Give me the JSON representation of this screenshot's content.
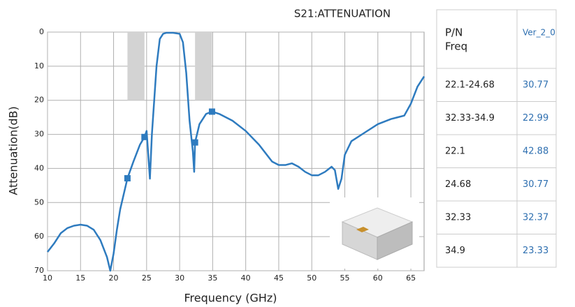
{
  "chart_data": {
    "type": "line",
    "title": "S21:ATTENUATION",
    "x_label": "Frequency (GHz)",
    "y_label": "Attenuation(dB)",
    "xlim": [
      10,
      67
    ],
    "ylim": [
      0,
      70
    ],
    "y_inverted": true,
    "xticks": [
      10,
      15,
      20,
      25,
      30,
      35,
      40,
      45,
      50,
      55,
      60,
      65
    ],
    "yticks": [
      0,
      10,
      20,
      30,
      40,
      50,
      60,
      70
    ],
    "grid": true,
    "series": [
      {
        "color": "#2e7bbf",
        "x": [
          10,
          11,
          12,
          13,
          14,
          15,
          16,
          17,
          18,
          19,
          19.5,
          20,
          20.5,
          21,
          22.1,
          23,
          24,
          24.68,
          25,
          25.5,
          25.8,
          26.5,
          27,
          27.5,
          28,
          29,
          30,
          30.5,
          31,
          31.5,
          32,
          32.2,
          32.33,
          33,
          34,
          34.9,
          36,
          38,
          40,
          42,
          44,
          45,
          46,
          47,
          48,
          49,
          50,
          51,
          52,
          53,
          53.5,
          54,
          54.5,
          55,
          56,
          58,
          60,
          62,
          63,
          64,
          65,
          66,
          67
        ],
        "values": [
          64.5,
          62,
          59,
          57.5,
          56.8,
          56.5,
          56.8,
          58,
          61,
          66,
          70,
          65,
          58,
          52,
          42.88,
          38,
          33,
          30.77,
          29,
          43,
          30,
          10,
          2,
          0.5,
          0.2,
          0.2,
          0.5,
          3,
          12,
          26,
          35,
          41,
          32.37,
          27,
          24,
          23.33,
          24,
          26,
          29,
          33,
          38,
          39,
          39,
          38.5,
          39.5,
          41,
          42,
          42,
          41,
          39.5,
          40.5,
          46,
          43,
          36,
          32,
          29.5,
          27,
          25.5,
          25,
          24.5,
          21,
          16,
          13
        ]
      }
    ],
    "markers": {
      "color": "#2e7bbf",
      "x": [
        22.1,
        24.68,
        32.33,
        34.9
      ],
      "values": [
        42.88,
        30.77,
        32.37,
        23.33
      ]
    },
    "shaded_bands": [
      {
        "x": [
          22.1,
          24.68
        ],
        "y": [
          0,
          20
        ]
      },
      {
        "x": [
          32.33,
          34.9
        ],
        "y": [
          0,
          20
        ]
      }
    ]
  },
  "table": {
    "header": [
      [
        "P/N",
        "Freq"
      ],
      "Ver_2_0"
    ],
    "rows": [
      [
        "22.1-24.68",
        "30.77"
      ],
      [
        "32.33-34.9",
        "22.99"
      ],
      [
        "22.1",
        "42.88"
      ],
      [
        "24.68",
        "30.77"
      ],
      [
        "32.33",
        "32.37"
      ],
      [
        "34.9",
        "23.33"
      ]
    ]
  }
}
